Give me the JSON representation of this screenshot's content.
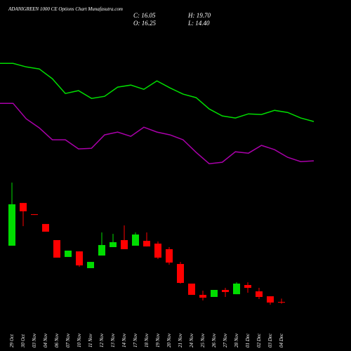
{
  "chart_data": {
    "type": "candlestick",
    "title": "ADANIGREEN 1000 CE Options Chart Munafasutra.com",
    "quote": {
      "close": "C: 16.05",
      "open": "O: 16.25",
      "high": "H: 19.70",
      "low": "L: 14.40"
    },
    "categories": [
      "29 Oct",
      "30 Oct",
      "03 Nov",
      "04 Nov",
      "06 Nov",
      "07 Nov",
      "10 Nov",
      "11 Nov",
      "12 Nov",
      "13 Nov",
      "14 Nov",
      "17 Nov",
      "18 Nov",
      "19 Nov",
      "20 Nov",
      "21 Nov",
      "24 Nov",
      "25 Nov",
      "26 Nov",
      "27 Nov",
      "28 Nov",
      "01 Dec",
      "02 Dec",
      "03 Dec",
      "04 Dec"
    ],
    "open": [
      75.6,
      120.7,
      108.9,
      98.5,
      81.5,
      63.7,
      69.6,
      51.9,
      65.2,
      74.1,
      81.5,
      75.6,
      80.7,
      77.8,
      71.9,
      56.3,
      35.6,
      23.7,
      21.5,
      28.9,
      24.4,
      34.1,
      27.4,
      22.2,
      16.25
    ],
    "close": [
      119.3,
      111.9,
      108.1,
      90.4,
      63.0,
      70.4,
      54.8,
      58.5,
      76.3,
      79.3,
      71.9,
      87.4,
      74.8,
      63.0,
      57.8,
      36.3,
      23.7,
      20.7,
      28.9,
      26.7,
      35.6,
      31.1,
      21.5,
      15.6,
      16.05
    ],
    "high": [
      142.2,
      120.7,
      108.9,
      98.5,
      81.5,
      70.4,
      69.6,
      58.5,
      89.6,
      88.1,
      97.0,
      89.6,
      89.6,
      80.0,
      74.1,
      58.5,
      35.6,
      28.1,
      28.9,
      31.1,
      37.0,
      37.0,
      31.1,
      22.2,
      19.7
    ],
    "low": [
      75.6,
      96.3,
      108.1,
      90.4,
      63.0,
      63.7,
      53.3,
      51.9,
      65.2,
      74.1,
      71.9,
      75.6,
      74.8,
      61.5,
      55.6,
      35.6,
      23.7,
      17.8,
      21.5,
      21.5,
      24.4,
      25.9,
      19.3,
      13.3,
      14.4
    ],
    "up_color": "#00dd00",
    "down_color": "#ff0000",
    "lines": [
      {
        "color": "#00dd00",
        "values": [
          268.1,
          268.1,
          264.4,
          262.2,
          251.9,
          236.3,
          239.3,
          231.1,
          233.3,
          243.0,
          245.2,
          240.7,
          249.6,
          242.2,
          235.6,
          231.9,
          220.0,
          212.6,
          210.4,
          214.8,
          214.1,
          218.5,
          216.3,
          210.4,
          206.7
        ]
      },
      {
        "color": "#aa00aa",
        "values": [
          225.9,
          225.9,
          209.6,
          200.0,
          187.4,
          187.4,
          177.8,
          178.5,
          192.6,
          195.6,
          191.1,
          200.7,
          195.6,
          192.6,
          187.4,
          174.1,
          162.2,
          163.7,
          174.8,
          173.3,
          181.5,
          177.0,
          168.9,
          164.4,
          165.2
        ]
      }
    ],
    "ylim": [
      0,
      335
    ]
  }
}
